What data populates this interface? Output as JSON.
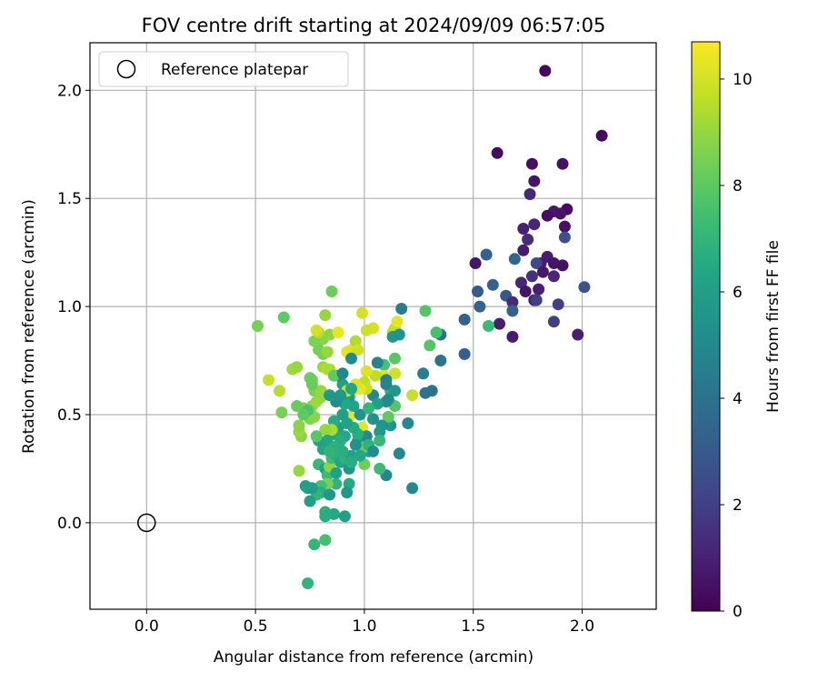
{
  "chart_data": {
    "type": "scatter",
    "title": "FOV centre drift starting at 2024/09/09 06:57:05",
    "xlabel": "Angular distance from reference (arcmin)",
    "ylabel": "Rotation from reference (arcmin)",
    "xlim": [
      -0.26,
      2.34
    ],
    "ylim": [
      -0.4,
      2.22
    ],
    "xticks": [
      0.0,
      0.5,
      1.0,
      1.5,
      2.0
    ],
    "xtick_labels": [
      "0.0",
      "0.5",
      "1.0",
      "1.5",
      "2.0"
    ],
    "yticks": [
      0.0,
      0.5,
      1.0,
      1.5,
      2.0
    ],
    "ytick_labels": [
      "0.0",
      "0.5",
      "1.0",
      "1.5",
      "2.0"
    ],
    "grid": true,
    "legend": {
      "placement": "upper-left",
      "entries": [
        "Reference platepar"
      ]
    },
    "colorbar": {
      "label": "Hours from first FF file",
      "colormap": "viridis",
      "range": [
        0,
        10.7
      ],
      "ticks": [
        0,
        2,
        4,
        6,
        8,
        10
      ],
      "tick_labels": [
        "0",
        "2",
        "4",
        "6",
        "8",
        "10"
      ]
    },
    "reference_point": {
      "name": "Reference platepar",
      "x": 0.0,
      "y": 0.0,
      "marker": "open-circle"
    },
    "series": [
      {
        "points": [
          [
            1.83,
            2.09,
            0.2
          ],
          [
            2.09,
            1.79,
            0.3
          ],
          [
            1.61,
            1.71,
            0.4
          ],
          [
            1.77,
            1.66,
            0.5
          ],
          [
            1.91,
            1.66,
            0.5
          ],
          [
            1.78,
            1.58,
            0.6
          ],
          [
            1.76,
            1.52,
            1.2
          ],
          [
            1.93,
            1.45,
            0.3
          ],
          [
            1.87,
            1.44,
            0.7
          ],
          [
            1.9,
            1.43,
            0.6
          ],
          [
            1.84,
            1.42,
            0.4
          ],
          [
            1.78,
            1.38,
            1.1
          ],
          [
            1.73,
            1.36,
            0.9
          ],
          [
            1.92,
            1.37,
            0.5
          ],
          [
            1.75,
            1.31,
            1.3
          ],
          [
            1.92,
            1.32,
            2.6
          ],
          [
            1.73,
            1.26,
            0.8
          ],
          [
            1.84,
            1.23,
            0.9
          ],
          [
            1.81,
            1.2,
            0.8
          ],
          [
            1.87,
            1.2,
            0.6
          ],
          [
            1.79,
            1.2,
            2.3
          ],
          [
            1.69,
            1.22,
            3.5
          ],
          [
            1.56,
            1.24,
            3.2
          ],
          [
            1.91,
            1.19,
            0.5
          ],
          [
            1.82,
            1.16,
            0.7
          ],
          [
            1.87,
            1.14,
            1.1
          ],
          [
            1.51,
            1.2,
            0.6
          ],
          [
            1.77,
            1.14,
            1.5
          ],
          [
            1.72,
            1.11,
            1.2
          ],
          [
            1.59,
            1.1,
            3.3
          ],
          [
            1.8,
            1.08,
            0.9
          ],
          [
            1.52,
            1.07,
            3.0
          ],
          [
            1.74,
            1.07,
            0.6
          ],
          [
            1.65,
            1.05,
            2.9
          ],
          [
            1.78,
            1.03,
            0.8
          ],
          [
            1.68,
            1.02,
            1.3
          ],
          [
            1.79,
            1.03,
            2.0
          ],
          [
            1.89,
            1.01,
            2.0
          ],
          [
            2.01,
            1.09,
            2.7
          ],
          [
            1.53,
            1.0,
            3.3
          ],
          [
            1.68,
            0.98,
            3.3
          ],
          [
            1.46,
            0.94,
            3.4
          ],
          [
            1.62,
            0.92,
            0.9
          ],
          [
            1.87,
            0.93,
            1.9
          ],
          [
            1.57,
            0.91,
            7.2
          ],
          [
            1.68,
            0.86,
            0.8
          ],
          [
            1.98,
            0.87,
            0.9
          ],
          [
            1.46,
            0.78,
            3.2
          ],
          [
            1.35,
            0.87,
            4.0
          ],
          [
            1.35,
            0.75,
            4.1
          ],
          [
            1.3,
            0.82,
            7.8
          ],
          [
            1.33,
            0.88,
            7.6
          ],
          [
            1.28,
            0.98,
            7.8
          ],
          [
            1.17,
            0.99,
            4.4
          ],
          [
            1.27,
            0.69,
            4.5
          ],
          [
            1.28,
            0.6,
            4.2
          ],
          [
            1.31,
            0.61,
            4.0
          ],
          [
            1.22,
            0.59,
            9.8
          ],
          [
            1.2,
            0.46,
            5.0
          ],
          [
            1.22,
            0.16,
            5.0
          ],
          [
            1.16,
            0.32,
            5.0
          ],
          [
            1.1,
            0.22,
            5.0
          ],
          [
            1.07,
            0.25,
            7.2
          ],
          [
            1.14,
            0.54,
            7.8
          ],
          [
            1.14,
            0.69,
            9.9
          ],
          [
            1.14,
            0.76,
            7.9
          ],
          [
            1.13,
            0.88,
            9.5
          ],
          [
            1.14,
            0.9,
            9.7
          ],
          [
            1.15,
            0.93,
            10.3
          ],
          [
            1.13,
            0.86,
            5.6
          ],
          [
            1.09,
            0.73,
            7.5
          ],
          [
            1.09,
            0.68,
            10.2
          ],
          [
            1.12,
            0.61,
            6.8
          ],
          [
            1.11,
            0.57,
            5.0
          ],
          [
            1.12,
            0.45,
            5.5
          ],
          [
            1.11,
            0.49,
            8.1
          ],
          [
            1.08,
            0.45,
            5.5
          ],
          [
            1.07,
            0.42,
            5.8
          ],
          [
            1.04,
            0.59,
            5.0
          ],
          [
            1.06,
            0.74,
            4.8
          ],
          [
            1.05,
            0.68,
            9.6
          ],
          [
            1.04,
            0.9,
            10.0
          ],
          [
            1.01,
            0.89,
            9.9
          ],
          [
            0.99,
            0.97,
            10.0
          ],
          [
            1.01,
            0.7,
            10.2
          ],
          [
            1.0,
            0.65,
            9.6
          ],
          [
            1.01,
            0.62,
            9.8
          ],
          [
            0.98,
            0.62,
            10.3
          ],
          [
            0.96,
            0.64,
            10.2
          ],
          [
            0.94,
            0.6,
            10.2
          ],
          [
            0.92,
            0.57,
            9.5
          ],
          [
            0.93,
            0.49,
            10.3
          ],
          [
            0.99,
            0.44,
            10.3
          ],
          [
            0.97,
            0.38,
            6.0
          ],
          [
            1.02,
            0.33,
            6.3
          ],
          [
            1.0,
            0.27,
            8.3
          ],
          [
            1.0,
            0.35,
            8.2
          ],
          [
            1.01,
            0.4,
            5.1
          ],
          [
            0.98,
            0.5,
            5.5
          ],
          [
            0.95,
            0.54,
            6.2
          ],
          [
            0.93,
            0.58,
            5.8
          ],
          [
            0.9,
            0.64,
            6.1
          ],
          [
            0.88,
            0.68,
            5.2
          ],
          [
            0.91,
            0.55,
            6.4
          ],
          [
            0.9,
            0.5,
            6.5
          ],
          [
            0.88,
            0.44,
            5.9
          ],
          [
            0.86,
            0.41,
            6.5
          ],
          [
            0.86,
            0.47,
            6.6
          ],
          [
            0.85,
            0.43,
            9.3
          ],
          [
            0.82,
            0.43,
            9.0
          ],
          [
            0.83,
            0.38,
            6.4
          ],
          [
            0.81,
            0.34,
            6.3
          ],
          [
            0.79,
            0.38,
            6.2
          ],
          [
            0.78,
            0.4,
            7.9
          ],
          [
            0.79,
            0.27,
            7.1
          ],
          [
            0.82,
            0.25,
            6.2
          ],
          [
            0.83,
            0.22,
            7.2
          ],
          [
            0.84,
            0.26,
            8.9
          ],
          [
            0.85,
            0.3,
            7.3
          ],
          [
            0.87,
            0.31,
            6.8
          ],
          [
            0.89,
            0.28,
            6.3
          ],
          [
            0.91,
            0.3,
            6.9
          ],
          [
            0.93,
            0.25,
            5.5
          ],
          [
            0.94,
            0.31,
            6.2
          ],
          [
            0.93,
            0.18,
            6.5
          ],
          [
            0.92,
            0.14,
            5.6
          ],
          [
            0.87,
            0.18,
            6.9
          ],
          [
            0.83,
            0.18,
            8.5
          ],
          [
            0.8,
            0.17,
            7.5
          ],
          [
            0.8,
            0.14,
            6.6
          ],
          [
            0.78,
            0.13,
            7.0
          ],
          [
            0.76,
            0.16,
            6.0
          ],
          [
            0.74,
            0.16,
            5.8
          ],
          [
            0.73,
            0.17,
            6.0
          ],
          [
            0.75,
            0.1,
            6.0
          ],
          [
            0.84,
            0.13,
            5.6
          ],
          [
            0.86,
            0.04,
            6.4
          ],
          [
            0.82,
            0.05,
            6.8
          ],
          [
            0.82,
            0.03,
            6.6
          ],
          [
            0.91,
            0.03,
            6.0
          ],
          [
            0.77,
            -0.1,
            7.0
          ],
          [
            0.82,
            -0.08,
            7.5
          ],
          [
            0.74,
            -0.28,
            7.0
          ],
          [
            0.7,
            0.24,
            9.0
          ],
          [
            0.71,
            0.4,
            8.8
          ],
          [
            0.7,
            0.42,
            9.0
          ],
          [
            0.7,
            0.45,
            8.8
          ],
          [
            0.72,
            0.53,
            8.6
          ],
          [
            0.69,
            0.54,
            8.2
          ],
          [
            0.75,
            0.48,
            8.7
          ],
          [
            0.77,
            0.49,
            8.8
          ],
          [
            0.76,
            0.54,
            8.8
          ],
          [
            0.78,
            0.56,
            9.1
          ],
          [
            0.77,
            0.61,
            8.6
          ],
          [
            0.76,
            0.66,
            8.3
          ],
          [
            0.8,
            0.58,
            9.0
          ],
          [
            0.8,
            0.61,
            9.0
          ],
          [
            0.81,
            0.72,
            9.1
          ],
          [
            0.83,
            0.71,
            9.5
          ],
          [
            0.84,
            0.71,
            9.3
          ],
          [
            0.86,
            0.68,
            8.0
          ],
          [
            0.79,
            0.8,
            8.5
          ],
          [
            0.81,
            0.78,
            8.5
          ],
          [
            0.83,
            0.79,
            9.0
          ],
          [
            0.79,
            0.84,
            8.3
          ],
          [
            0.77,
            0.84,
            8.6
          ],
          [
            0.81,
            0.85,
            8.7
          ],
          [
            0.79,
            0.88,
            9.4
          ],
          [
            0.78,
            0.89,
            10.0
          ],
          [
            0.84,
            0.87,
            8.9
          ],
          [
            0.82,
            0.96,
            9.0
          ],
          [
            0.85,
            1.07,
            8.3
          ],
          [
            0.88,
            0.88,
            10.4
          ],
          [
            0.92,
            0.79,
            10.3
          ],
          [
            0.94,
            0.8,
            10.2
          ],
          [
            0.96,
            0.84,
            9.4
          ],
          [
            0.97,
            0.8,
            9.9
          ],
          [
            0.94,
            0.76,
            5.0
          ],
          [
            0.9,
            0.69,
            4.9
          ],
          [
            0.92,
            0.61,
            9.9
          ],
          [
            0.56,
            0.66,
            9.8
          ],
          [
            0.51,
            0.91,
            8.5
          ],
          [
            0.63,
            0.95,
            8.0
          ],
          [
            0.61,
            0.61,
            9.5
          ],
          [
            0.62,
            0.51,
            8.5
          ],
          [
            0.67,
            0.71,
            9.2
          ],
          [
            0.69,
            0.72,
            9.0
          ],
          [
            0.75,
            0.67,
            8.3
          ],
          [
            0.76,
            0.64,
            8.2
          ],
          [
            0.74,
            0.52,
            7.6
          ],
          [
            0.72,
            0.5,
            8.0
          ],
          [
            1.1,
            0.66,
            4.6
          ],
          [
            1.1,
            0.64,
            4.8
          ],
          [
            1.16,
            0.87,
            5.5
          ],
          [
            1.14,
            0.61,
            5.6
          ],
          [
            1.1,
            0.56,
            5.1
          ],
          [
            1.06,
            0.55,
            6.0
          ],
          [
            1.02,
            0.53,
            7.0
          ],
          [
            1.04,
            0.48,
            5.4
          ],
          [
            0.97,
            0.41,
            6.7
          ],
          [
            0.95,
            0.44,
            6.5
          ],
          [
            0.91,
            0.4,
            6.4
          ],
          [
            0.89,
            0.38,
            6.6
          ],
          [
            0.86,
            0.35,
            6.8
          ],
          [
            0.84,
            0.33,
            7.0
          ],
          [
            0.9,
            0.33,
            6.7
          ],
          [
            0.87,
            0.23,
            6.1
          ],
          [
            0.94,
            0.28,
            6.6
          ],
          [
            0.98,
            0.31,
            6.4
          ],
          [
            1.02,
            0.36,
            6.9
          ],
          [
            1.07,
            0.38,
            7.1
          ],
          [
            1.04,
            0.33,
            5.3
          ],
          [
            0.96,
            0.36,
            5.4
          ],
          [
            0.92,
            0.46,
            6.2
          ],
          [
            0.9,
            0.5,
            6.0
          ],
          [
            0.87,
            0.56,
            5.2
          ],
          [
            0.84,
            0.59,
            5.7
          ],
          [
            0.89,
            0.59,
            5.6
          ],
          [
            0.94,
            0.62,
            6.3
          ]
        ]
      }
    ]
  }
}
